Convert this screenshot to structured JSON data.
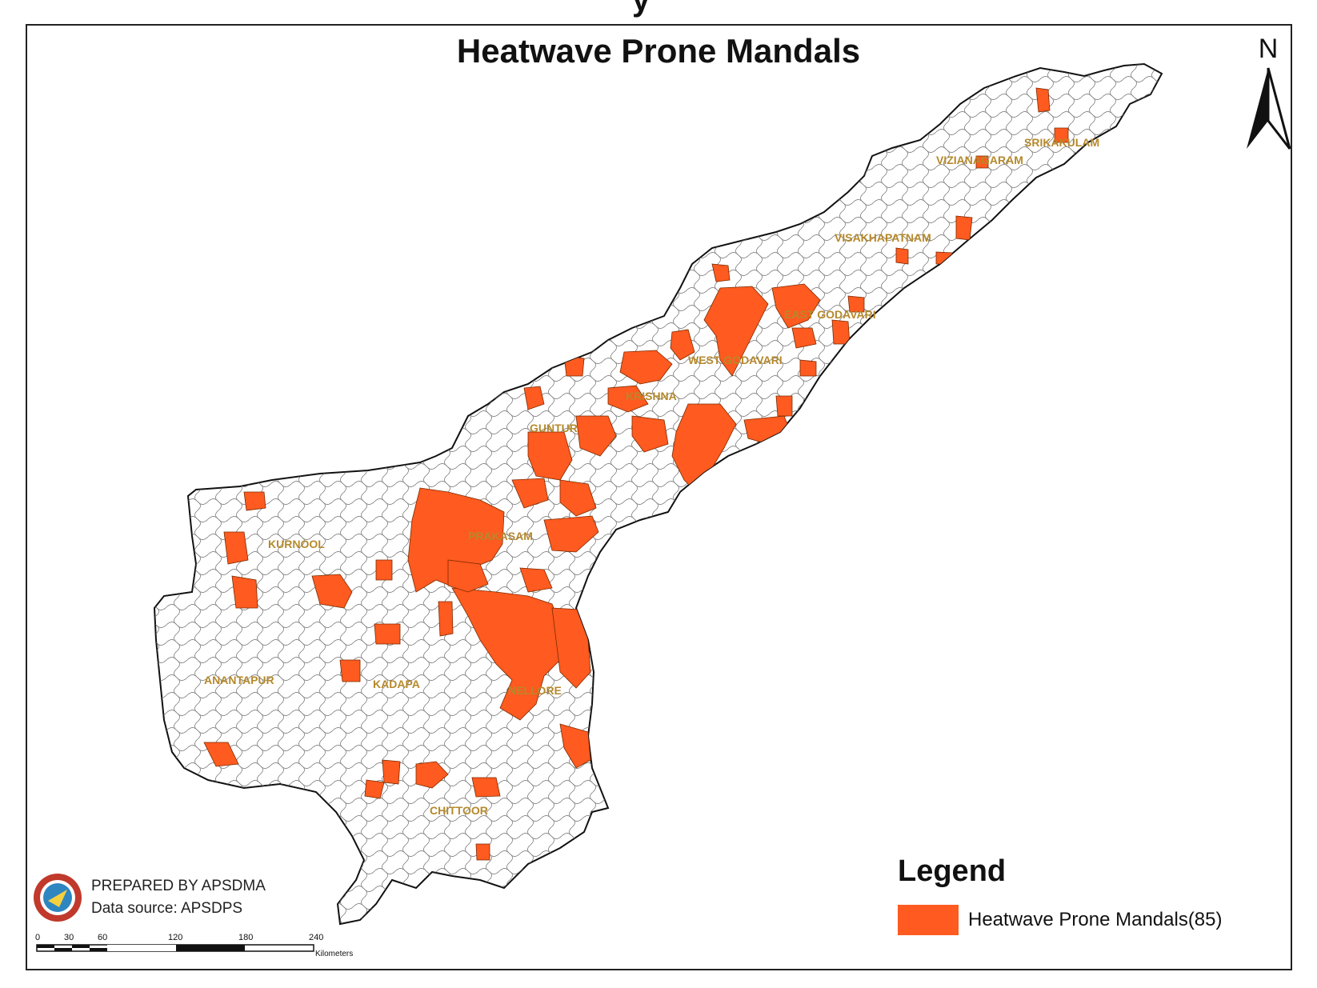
{
  "map": {
    "title_cut": "y",
    "title": "Heatwave Prone Mandals",
    "north_label": "N",
    "districts": [
      {
        "name": "SRIKAKULAM"
      },
      {
        "name": "VIZIANAGARAM"
      },
      {
        "name": "VISAKHAPATNAM"
      },
      {
        "name": "EAST GODAVARI"
      },
      {
        "name": "WEST GODAVARI"
      },
      {
        "name": "KRISHNA"
      },
      {
        "name": "GUNTUR"
      },
      {
        "name": "PRAKASAM"
      },
      {
        "name": "KURNOOL"
      },
      {
        "name": "ANANTAPUR"
      },
      {
        "name": "KADAPA"
      },
      {
        "name": "NELLORE"
      },
      {
        "name": "CHITTOOR"
      }
    ],
    "colors": {
      "heatwave": "#ff5a1f",
      "boundary": "#333333",
      "label": "#b5892b"
    }
  },
  "legend": {
    "title": "Legend",
    "items": [
      {
        "label": "Heatwave Prone Mandals(85)",
        "color": "#ff5a1f"
      }
    ]
  },
  "credits": {
    "prepared_by": "PREPARED BY APSDMA",
    "data_source": "Data source: APSDPS",
    "logo_icon": "apsdma-logo-icon"
  },
  "scale_bar": {
    "ticks": [
      "0",
      "30",
      "60",
      "120",
      "180",
      "240"
    ],
    "unit": "Kilometers"
  }
}
